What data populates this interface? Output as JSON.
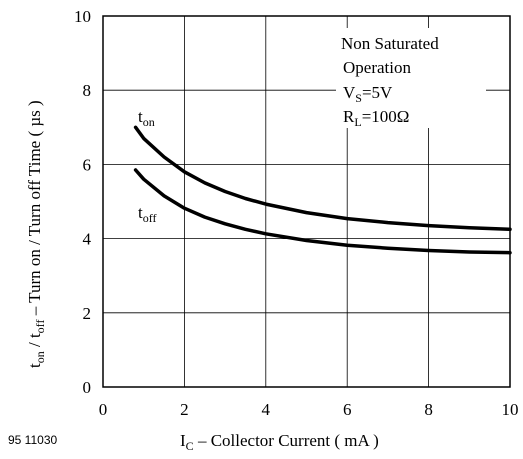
{
  "figure_id": "95 11030",
  "chart_data": {
    "type": "line",
    "title": "",
    "xlabel": {
      "main": "I",
      "sub": "C",
      "rest": " – Collector Current ( mA )"
    },
    "ylabel": {
      "p1": "t",
      "s1": "on",
      "p2": " / t",
      "s2": "off",
      "p3": " – Turn on / Turn off Time ( µs )"
    },
    "xlim": [
      0,
      10
    ],
    "ylim": [
      0,
      10
    ],
    "xticks": [
      0,
      2,
      4,
      6,
      8,
      10
    ],
    "yticks": [
      0,
      2,
      4,
      6,
      8,
      10
    ],
    "grid": true,
    "series": [
      {
        "name": "t_on",
        "label_main": "t",
        "label_sub": "on",
        "x": [
          0.8,
          1.0,
          1.5,
          2.0,
          2.5,
          3.0,
          3.5,
          4.0,
          5.0,
          6.0,
          7.0,
          8.0,
          9.0,
          10.0
        ],
        "y": [
          7.0,
          6.7,
          6.2,
          5.8,
          5.5,
          5.27,
          5.08,
          4.93,
          4.7,
          4.54,
          4.43,
          4.35,
          4.29,
          4.25
        ]
      },
      {
        "name": "t_off",
        "label_main": "t",
        "label_sub": "off",
        "x": [
          0.8,
          1.0,
          1.5,
          2.0,
          2.5,
          3.0,
          3.5,
          4.0,
          5.0,
          6.0,
          7.0,
          8.0,
          9.0,
          10.0
        ],
        "y": [
          5.85,
          5.6,
          5.15,
          4.82,
          4.58,
          4.4,
          4.25,
          4.13,
          3.95,
          3.82,
          3.74,
          3.68,
          3.64,
          3.62
        ]
      }
    ],
    "annotation": {
      "line1": "Non Saturated",
      "line2": "Operation",
      "vs_main": "V",
      "vs_sub": "S",
      "vs_rest": "=5V",
      "rl_main": "R",
      "rl_sub": "L",
      "rl_rest": "=100Ω"
    }
  }
}
